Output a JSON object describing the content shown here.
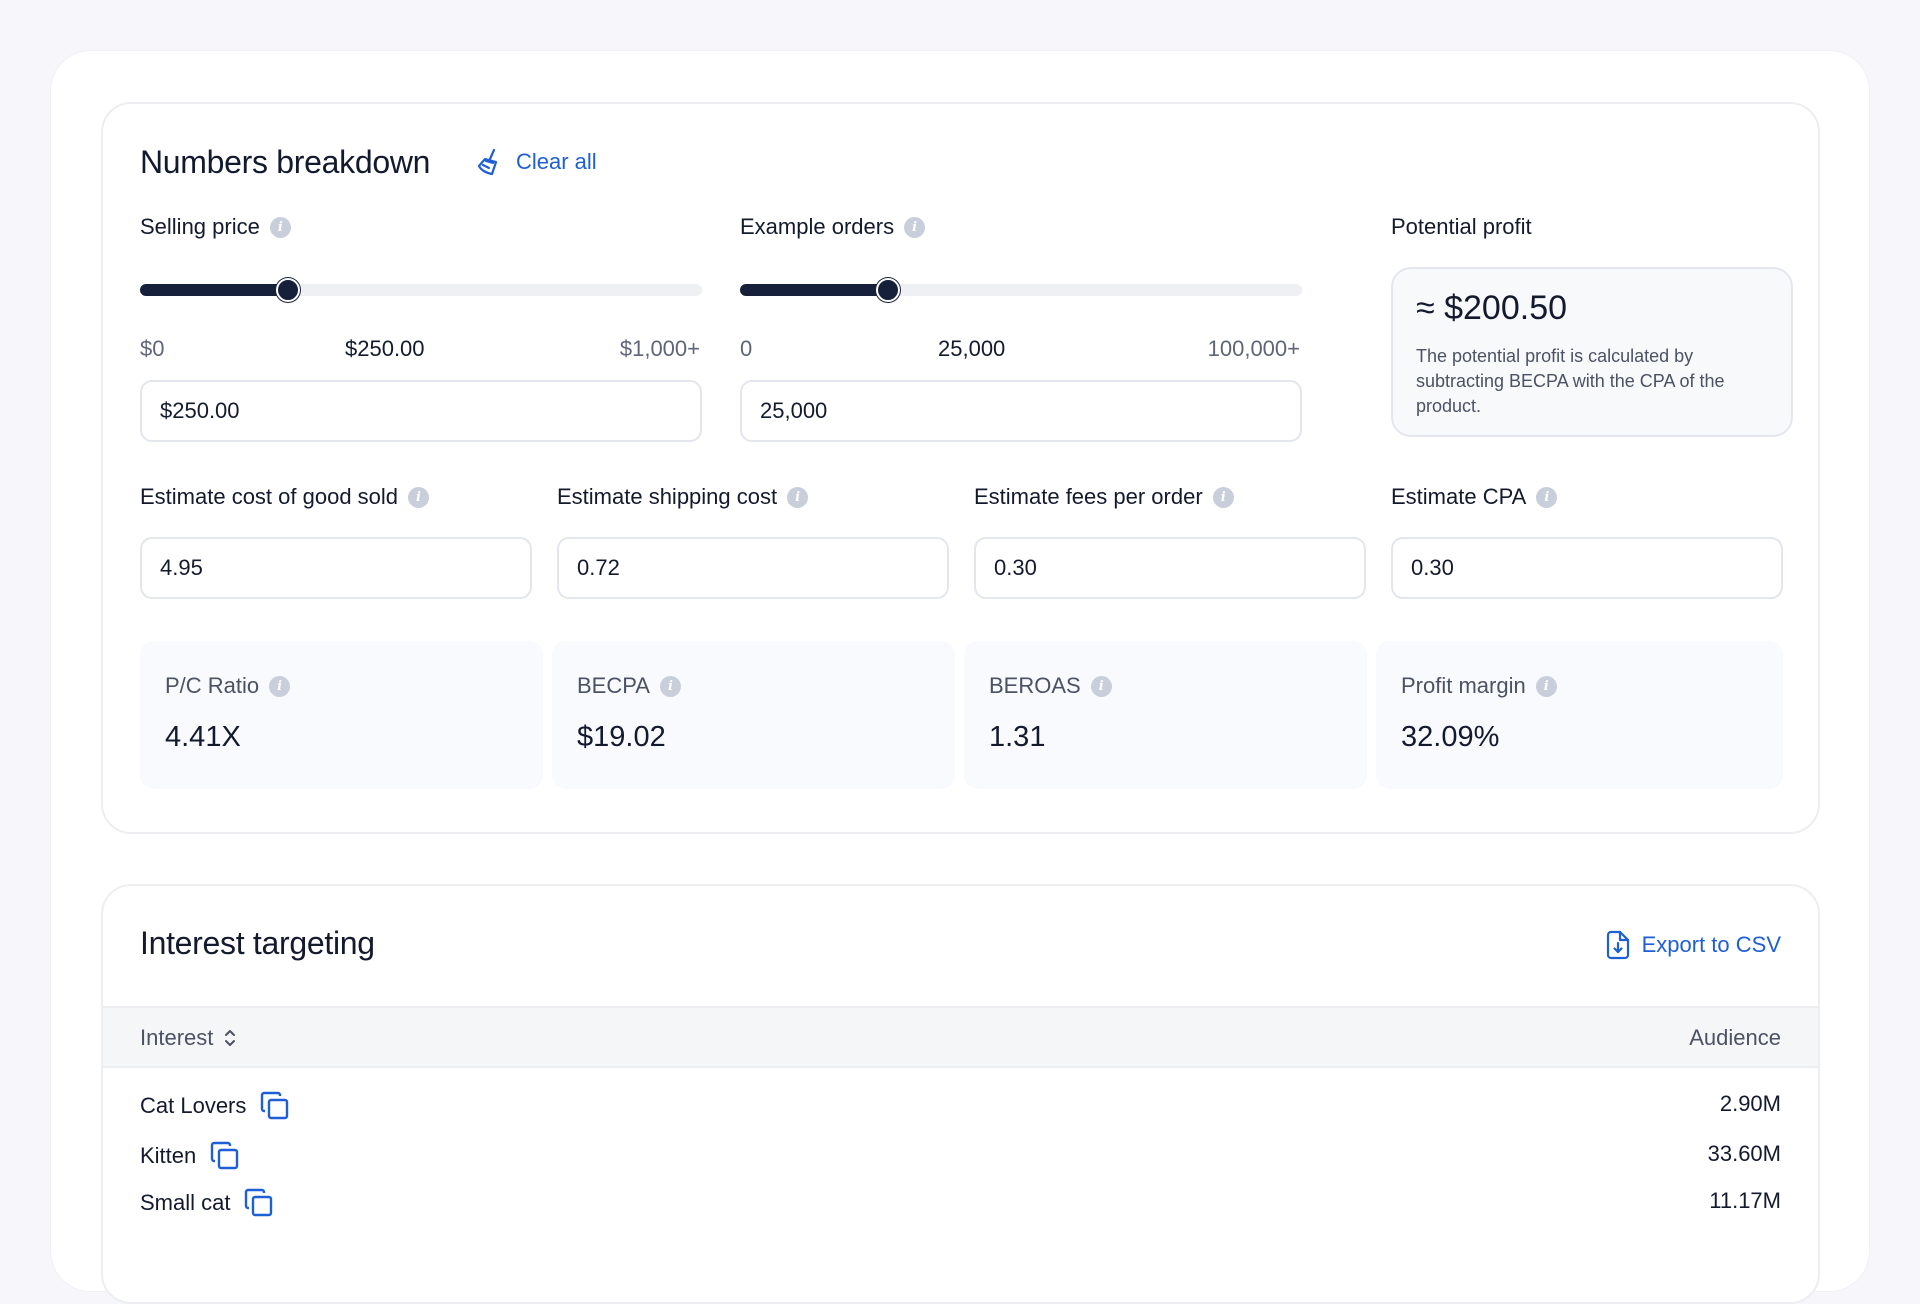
{
  "numbers": {
    "title": "Numbers breakdown",
    "clear_label": "Clear all",
    "selling_price": {
      "label": "Selling price",
      "min_label": "$0",
      "current_label": "$250.00",
      "max_label": "$1,000+",
      "value": "$250.00",
      "fraction": 0.25
    },
    "example_orders": {
      "label": "Example orders",
      "min_label": "0",
      "current_label": "25,000",
      "max_label": "100,000+",
      "value": "25,000",
      "fraction": 0.25
    },
    "potential_profit": {
      "label": "Potential profit",
      "value": "≈ $200.50",
      "description": "The potential profit is calculated by subtracting BECPA with the CPA of the product."
    },
    "estimates": [
      {
        "label": "Estimate cost of good sold",
        "value": "4.95"
      },
      {
        "label": "Estimate shipping cost",
        "value": "0.72"
      },
      {
        "label": "Estimate fees per order",
        "value": "0.30"
      },
      {
        "label": "Estimate CPA",
        "value": "0.30"
      }
    ],
    "metrics": [
      {
        "label": "P/C Ratio",
        "value": "4.41X"
      },
      {
        "label": "BECPA",
        "value": "$19.02"
      },
      {
        "label": "BEROAS",
        "value": "1.31"
      },
      {
        "label": "Profit margin",
        "value": "32.09%"
      }
    ]
  },
  "interest": {
    "title": "Interest targeting",
    "export_label": "Export to CSV",
    "col_interest": "Interest",
    "col_audience": "Audience",
    "rows": [
      {
        "name": "Cat Lovers",
        "audience": "2.90M"
      },
      {
        "name": "Kitten",
        "audience": "33.60M"
      },
      {
        "name": "Small cat",
        "audience": "11.17M"
      }
    ]
  },
  "colors": {
    "accent": "#1f5fd6",
    "slider": "#16203a",
    "info_icon": "#c9cedb"
  },
  "icons": {
    "clear": "broom-icon",
    "info": "info-icon",
    "export": "file-download-icon",
    "sort": "sort-icon",
    "copy": "copy-icon"
  }
}
